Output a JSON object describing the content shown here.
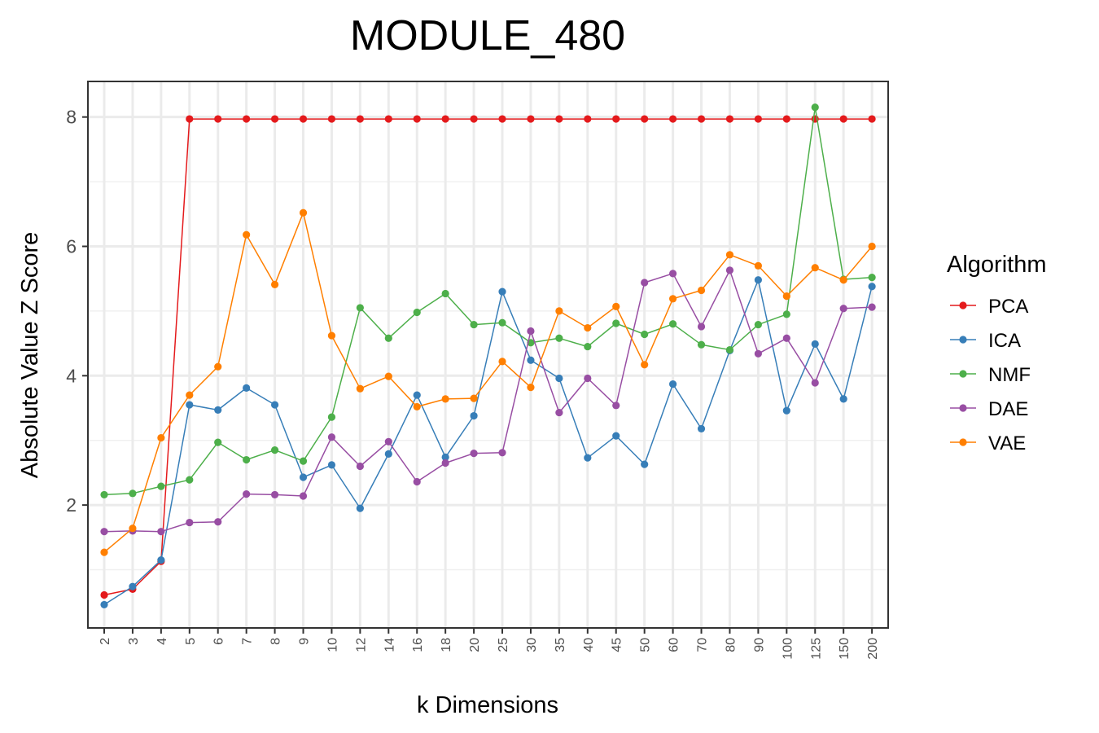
{
  "chart_data": {
    "type": "line",
    "title": "MODULE_480",
    "xlabel": "k Dimensions",
    "ylabel": "Absolute Value Z Score",
    "categories": [
      "2",
      "3",
      "4",
      "5",
      "6",
      "7",
      "8",
      "9",
      "10",
      "12",
      "14",
      "16",
      "18",
      "20",
      "25",
      "30",
      "35",
      "40",
      "45",
      "50",
      "60",
      "70",
      "80",
      "90",
      "100",
      "125",
      "150",
      "200"
    ],
    "yticks": [
      2,
      4,
      6,
      8
    ],
    "ylim": [
      0.1,
      8.55
    ],
    "grid": true,
    "legend": {
      "title": "Algorithm",
      "position": "right"
    },
    "series": [
      {
        "name": "PCA",
        "color": "#E41A1C",
        "values": [
          0.61,
          0.7,
          1.13,
          7.97,
          7.97,
          7.97,
          7.97,
          7.97,
          7.97,
          7.97,
          7.97,
          7.97,
          7.97,
          7.97,
          7.97,
          7.97,
          7.97,
          7.97,
          7.97,
          7.97,
          7.97,
          7.97,
          7.97,
          7.97,
          7.97,
          7.97,
          7.97,
          7.97
        ]
      },
      {
        "name": "ICA",
        "color": "#377EB8",
        "values": [
          0.46,
          0.74,
          1.15,
          3.55,
          3.47,
          3.81,
          3.55,
          2.43,
          2.62,
          1.95,
          2.79,
          3.7,
          2.74,
          3.38,
          5.3,
          4.24,
          3.96,
          2.73,
          3.07,
          2.63,
          3.87,
          3.18,
          4.39,
          5.48,
          3.46,
          4.49,
          3.64,
          5.38
        ]
      },
      {
        "name": "NMF",
        "color": "#4DAF4A",
        "values": [
          2.16,
          2.18,
          2.29,
          2.39,
          2.97,
          2.7,
          2.85,
          2.68,
          3.36,
          5.05,
          4.58,
          4.98,
          5.27,
          4.79,
          4.82,
          4.51,
          4.58,
          4.45,
          4.81,
          4.64,
          4.8,
          4.48,
          4.4,
          4.79,
          4.95,
          8.15,
          5.49,
          5.52
        ]
      },
      {
        "name": "DAE",
        "color": "#984EA3",
        "values": [
          1.59,
          1.6,
          1.59,
          1.73,
          1.74,
          2.17,
          2.16,
          2.14,
          3.05,
          2.6,
          2.98,
          2.36,
          2.65,
          2.8,
          2.81,
          4.69,
          3.43,
          3.96,
          3.54,
          5.44,
          5.58,
          4.76,
          5.63,
          4.34,
          4.58,
          3.89,
          5.04,
          5.06
        ]
      },
      {
        "name": "VAE",
        "color": "#FF7F00",
        "values": [
          1.27,
          1.64,
          3.04,
          3.7,
          4.14,
          6.18,
          5.41,
          6.52,
          4.62,
          3.8,
          3.99,
          3.52,
          3.64,
          3.65,
          4.22,
          3.82,
          5.0,
          4.74,
          5.07,
          4.17,
          5.19,
          5.32,
          5.87,
          5.7,
          5.23,
          5.67,
          5.48,
          6.0
        ]
      }
    ]
  }
}
